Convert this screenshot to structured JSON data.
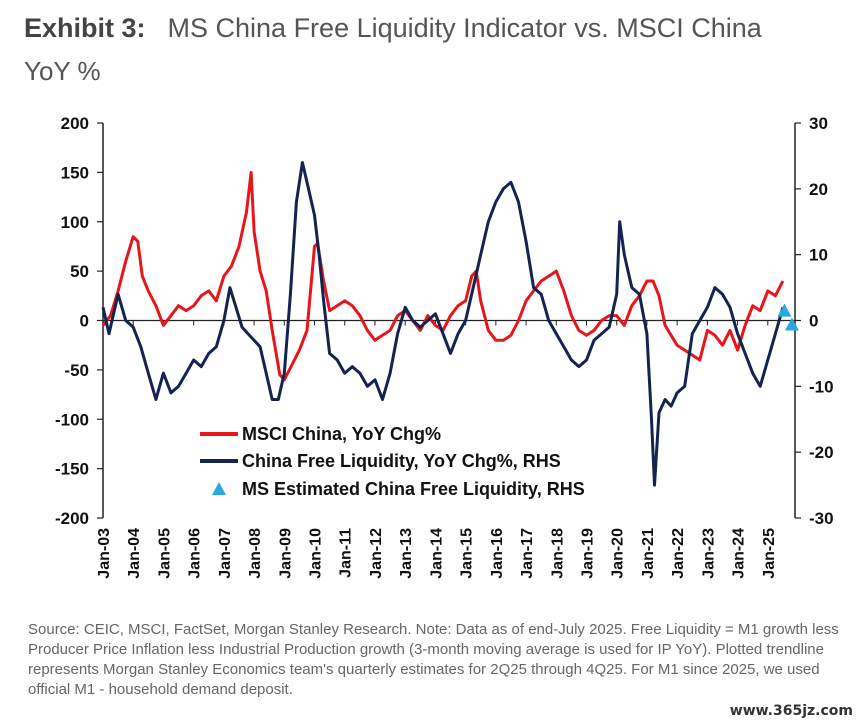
{
  "header": {
    "exhibit": "Exhibit 3:",
    "title": "MS China Free Liquidity Indicator vs. MSCI China",
    "subtitle": "YoY %"
  },
  "source_note": "Source: CEIC, MSCI, FactSet, Morgan Stanley Research. Note: Data as of end-July 2025. Free Liquidity = M1 growth less Producer Price Inflation less Industrial Production growth (3-month moving average is used for IP YoY). Plotted trendline represents Morgan Stanley Economics team's quarterly estimates for 2Q25 through 4Q25. For M1 since 2025, we used official M1 - household demand deposit.",
  "watermark": "www.365jz.com",
  "colors": {
    "msci": "#e8161b",
    "liquidity": "#14234f",
    "estimate": "#2aa8e0",
    "axis": "#222222"
  },
  "chart_data": {
    "type": "line",
    "x_ticks": [
      "Jan-03",
      "Jan-04",
      "Jan-05",
      "Jan-06",
      "Jan-07",
      "Jan-08",
      "Jan-09",
      "Jan-10",
      "Jan-11",
      "Jan-12",
      "Jan-13",
      "Jan-14",
      "Jan-15",
      "Jan-16",
      "Jan-17",
      "Jan-18",
      "Jan-19",
      "Jan-20",
      "Jan-21",
      "Jan-22",
      "Jan-23",
      "Jan-24",
      "Jan-25"
    ],
    "xlim": [
      2003.0,
      2025.9
    ],
    "y_left": {
      "ticks": [
        200,
        150,
        100,
        50,
        0,
        -50,
        -100,
        -150,
        -200
      ],
      "ylim": [
        -200,
        200
      ]
    },
    "y_right": {
      "ticks": [
        30,
        20,
        10,
        0,
        -10,
        -20,
        -30
      ],
      "ylim": [
        -30,
        30
      ]
    },
    "legend": [
      "MSCI China, YoY Chg%",
      "China Free Liquidity, YoY Chg%, RHS",
      "MS Estimated China Free Liquidity, RHS"
    ],
    "legend_placement": "bottom-center",
    "series": [
      {
        "name": "MSCI China, YoY Chg%",
        "axis": "left",
        "points": [
          [
            2003.0,
            -5
          ],
          [
            2003.25,
            5
          ],
          [
            2003.5,
            30
          ],
          [
            2003.75,
            60
          ],
          [
            2004.0,
            85
          ],
          [
            2004.15,
            80
          ],
          [
            2004.3,
            45
          ],
          [
            2004.5,
            30
          ],
          [
            2004.75,
            15
          ],
          [
            2005.0,
            -5
          ],
          [
            2005.25,
            5
          ],
          [
            2005.5,
            15
          ],
          [
            2005.75,
            10
          ],
          [
            2006.0,
            15
          ],
          [
            2006.25,
            25
          ],
          [
            2006.5,
            30
          ],
          [
            2006.75,
            20
          ],
          [
            2007.0,
            45
          ],
          [
            2007.25,
            55
          ],
          [
            2007.5,
            75
          ],
          [
            2007.75,
            110
          ],
          [
            2007.9,
            150
          ],
          [
            2008.0,
            90
          ],
          [
            2008.2,
            50
          ],
          [
            2008.4,
            30
          ],
          [
            2008.6,
            -10
          ],
          [
            2008.85,
            -55
          ],
          [
            2009.0,
            -60
          ],
          [
            2009.25,
            -45
          ],
          [
            2009.5,
            -30
          ],
          [
            2009.75,
            -10
          ],
          [
            2010.0,
            75
          ],
          [
            2010.1,
            78
          ],
          [
            2010.3,
            40
          ],
          [
            2010.5,
            10
          ],
          [
            2010.75,
            15
          ],
          [
            2011.0,
            20
          ],
          [
            2011.25,
            15
          ],
          [
            2011.5,
            5
          ],
          [
            2011.75,
            -10
          ],
          [
            2012.0,
            -20
          ],
          [
            2012.25,
            -15
          ],
          [
            2012.5,
            -10
          ],
          [
            2012.75,
            5
          ],
          [
            2013.0,
            10
          ],
          [
            2013.25,
            0
          ],
          [
            2013.5,
            -10
          ],
          [
            2013.75,
            5
          ],
          [
            2014.0,
            -5
          ],
          [
            2014.25,
            -10
          ],
          [
            2014.5,
            5
          ],
          [
            2014.75,
            15
          ],
          [
            2015.0,
            20
          ],
          [
            2015.2,
            45
          ],
          [
            2015.35,
            50
          ],
          [
            2015.5,
            20
          ],
          [
            2015.75,
            -10
          ],
          [
            2016.0,
            -20
          ],
          [
            2016.25,
            -20
          ],
          [
            2016.5,
            -15
          ],
          [
            2016.75,
            0
          ],
          [
            2017.0,
            20
          ],
          [
            2017.25,
            30
          ],
          [
            2017.5,
            40
          ],
          [
            2017.75,
            45
          ],
          [
            2018.0,
            50
          ],
          [
            2018.25,
            30
          ],
          [
            2018.5,
            5
          ],
          [
            2018.75,
            -10
          ],
          [
            2019.0,
            -15
          ],
          [
            2019.25,
            -10
          ],
          [
            2019.5,
            0
          ],
          [
            2019.75,
            5
          ],
          [
            2020.0,
            5
          ],
          [
            2020.25,
            -5
          ],
          [
            2020.5,
            15
          ],
          [
            2020.75,
            25
          ],
          [
            2021.0,
            40
          ],
          [
            2021.2,
            40
          ],
          [
            2021.4,
            25
          ],
          [
            2021.6,
            -5
          ],
          [
            2021.8,
            -15
          ],
          [
            2022.0,
            -25
          ],
          [
            2022.25,
            -30
          ],
          [
            2022.5,
            -35
          ],
          [
            2022.75,
            -40
          ],
          [
            2023.0,
            -10
          ],
          [
            2023.25,
            -15
          ],
          [
            2023.5,
            -25
          ],
          [
            2023.75,
            -10
          ],
          [
            2024.0,
            -30
          ],
          [
            2024.25,
            -5
          ],
          [
            2024.5,
            15
          ],
          [
            2024.75,
            10
          ],
          [
            2025.0,
            30
          ],
          [
            2025.25,
            25
          ],
          [
            2025.5,
            40
          ]
        ]
      },
      {
        "name": "China Free Liquidity, YoY Chg%, RHS",
        "axis": "right",
        "points": [
          [
            2003.0,
            2
          ],
          [
            2003.2,
            -2
          ],
          [
            2003.5,
            4
          ],
          [
            2003.75,
            0
          ],
          [
            2004.0,
            -1
          ],
          [
            2004.25,
            -4
          ],
          [
            2004.5,
            -8
          ],
          [
            2004.75,
            -12
          ],
          [
            2005.0,
            -8
          ],
          [
            2005.25,
            -11
          ],
          [
            2005.5,
            -10
          ],
          [
            2005.75,
            -8
          ],
          [
            2006.0,
            -6
          ],
          [
            2006.25,
            -7
          ],
          [
            2006.5,
            -5
          ],
          [
            2006.75,
            -4
          ],
          [
            2007.0,
            0
          ],
          [
            2007.2,
            5
          ],
          [
            2007.4,
            2
          ],
          [
            2007.6,
            -1
          ],
          [
            2007.8,
            -2
          ],
          [
            2008.0,
            -3
          ],
          [
            2008.2,
            -4
          ],
          [
            2008.4,
            -8
          ],
          [
            2008.6,
            -12
          ],
          [
            2008.8,
            -12
          ],
          [
            2009.0,
            -8
          ],
          [
            2009.2,
            4
          ],
          [
            2009.4,
            18
          ],
          [
            2009.6,
            24
          ],
          [
            2009.8,
            20
          ],
          [
            2010.0,
            16
          ],
          [
            2010.15,
            10
          ],
          [
            2010.3,
            3
          ],
          [
            2010.5,
            -5
          ],
          [
            2010.75,
            -6
          ],
          [
            2011.0,
            -8
          ],
          [
            2011.25,
            -7
          ],
          [
            2011.5,
            -8
          ],
          [
            2011.75,
            -10
          ],
          [
            2012.0,
            -9
          ],
          [
            2012.25,
            -12
          ],
          [
            2012.5,
            -8
          ],
          [
            2012.75,
            -2
          ],
          [
            2013.0,
            2
          ],
          [
            2013.25,
            0
          ],
          [
            2013.5,
            -1
          ],
          [
            2013.75,
            0
          ],
          [
            2014.0,
            1
          ],
          [
            2014.25,
            -2
          ],
          [
            2014.5,
            -5
          ],
          [
            2014.75,
            -2
          ],
          [
            2015.0,
            0
          ],
          [
            2015.25,
            5
          ],
          [
            2015.5,
            10
          ],
          [
            2015.75,
            15
          ],
          [
            2016.0,
            18
          ],
          [
            2016.25,
            20
          ],
          [
            2016.5,
            21
          ],
          [
            2016.75,
            18
          ],
          [
            2017.0,
            12
          ],
          [
            2017.25,
            5
          ],
          [
            2017.5,
            4
          ],
          [
            2017.75,
            0
          ],
          [
            2018.0,
            -2
          ],
          [
            2018.25,
            -4
          ],
          [
            2018.5,
            -6
          ],
          [
            2018.75,
            -7
          ],
          [
            2019.0,
            -6
          ],
          [
            2019.25,
            -3
          ],
          [
            2019.5,
            -2
          ],
          [
            2019.75,
            -1
          ],
          [
            2020.0,
            4
          ],
          [
            2020.1,
            15
          ],
          [
            2020.25,
            10
          ],
          [
            2020.5,
            5
          ],
          [
            2020.75,
            4
          ],
          [
            2021.0,
            -2
          ],
          [
            2021.15,
            -15
          ],
          [
            2021.25,
            -25
          ],
          [
            2021.4,
            -14
          ],
          [
            2021.6,
            -12
          ],
          [
            2021.8,
            -13
          ],
          [
            2022.0,
            -11
          ],
          [
            2022.25,
            -10
          ],
          [
            2022.5,
            -2
          ],
          [
            2022.75,
            0
          ],
          [
            2023.0,
            2
          ],
          [
            2023.25,
            5
          ],
          [
            2023.5,
            4
          ],
          [
            2023.75,
            2
          ],
          [
            2024.0,
            -2
          ],
          [
            2024.25,
            -5
          ],
          [
            2024.5,
            -8
          ],
          [
            2024.75,
            -10
          ],
          [
            2025.0,
            -6
          ],
          [
            2025.25,
            -2
          ],
          [
            2025.5,
            2
          ]
        ]
      },
      {
        "name": "MS Estimated China Free Liquidity, RHS",
        "axis": "right",
        "marker": "triangle",
        "points": [
          [
            2025.55,
            1.5
          ],
          [
            2025.8,
            -0.6
          ]
        ]
      }
    ]
  }
}
